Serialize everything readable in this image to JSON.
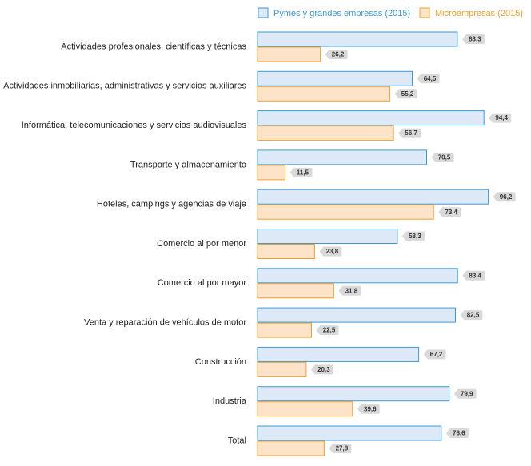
{
  "chart_data": {
    "type": "hbar",
    "categories": [
      "Actividades profesionales, científicas y técnicas",
      "Actividades inmobiliarias, administrativas y servicios auxiliares",
      "Informática, telecomunicaciones y servicios audiovisuales",
      "Transporte y almacenamiento",
      "Hoteles, campings y agencias de viaje",
      "Comercio al por menor",
      "Comercio al por mayor",
      "Venta y reparación de vehículos de motor",
      "Construcción",
      "Industria",
      "Total"
    ],
    "series": [
      {
        "name": "Pymes y grandes empresas (2015)",
        "color": "#3a9ad9",
        "fill": "#dde9f7",
        "values": [
          83.3,
          64.5,
          94.4,
          70.5,
          96.2,
          58.3,
          83.4,
          82.5,
          67.2,
          79.9,
          76.6
        ],
        "value_labels": [
          "83,3",
          "64,5",
          "94,4",
          "70,5",
          "96,2",
          "58,3",
          "83,4",
          "82,5",
          "67,2",
          "79,9",
          "76,6"
        ]
      },
      {
        "name": "Microempresas (2015)",
        "color": "#f0a030",
        "fill": "#fde3c8",
        "values": [
          26.2,
          55.2,
          56.7,
          11.5,
          73.4,
          23.8,
          31.8,
          22.5,
          20.3,
          39.6,
          27.8
        ],
        "value_labels": [
          "26,2",
          "55,2",
          "56,7",
          "11,5",
          "73,4",
          "23,8",
          "31,8",
          "22,5",
          "20,3",
          "39,6",
          "27,8"
        ]
      }
    ],
    "xlim": [
      0,
      100
    ]
  }
}
